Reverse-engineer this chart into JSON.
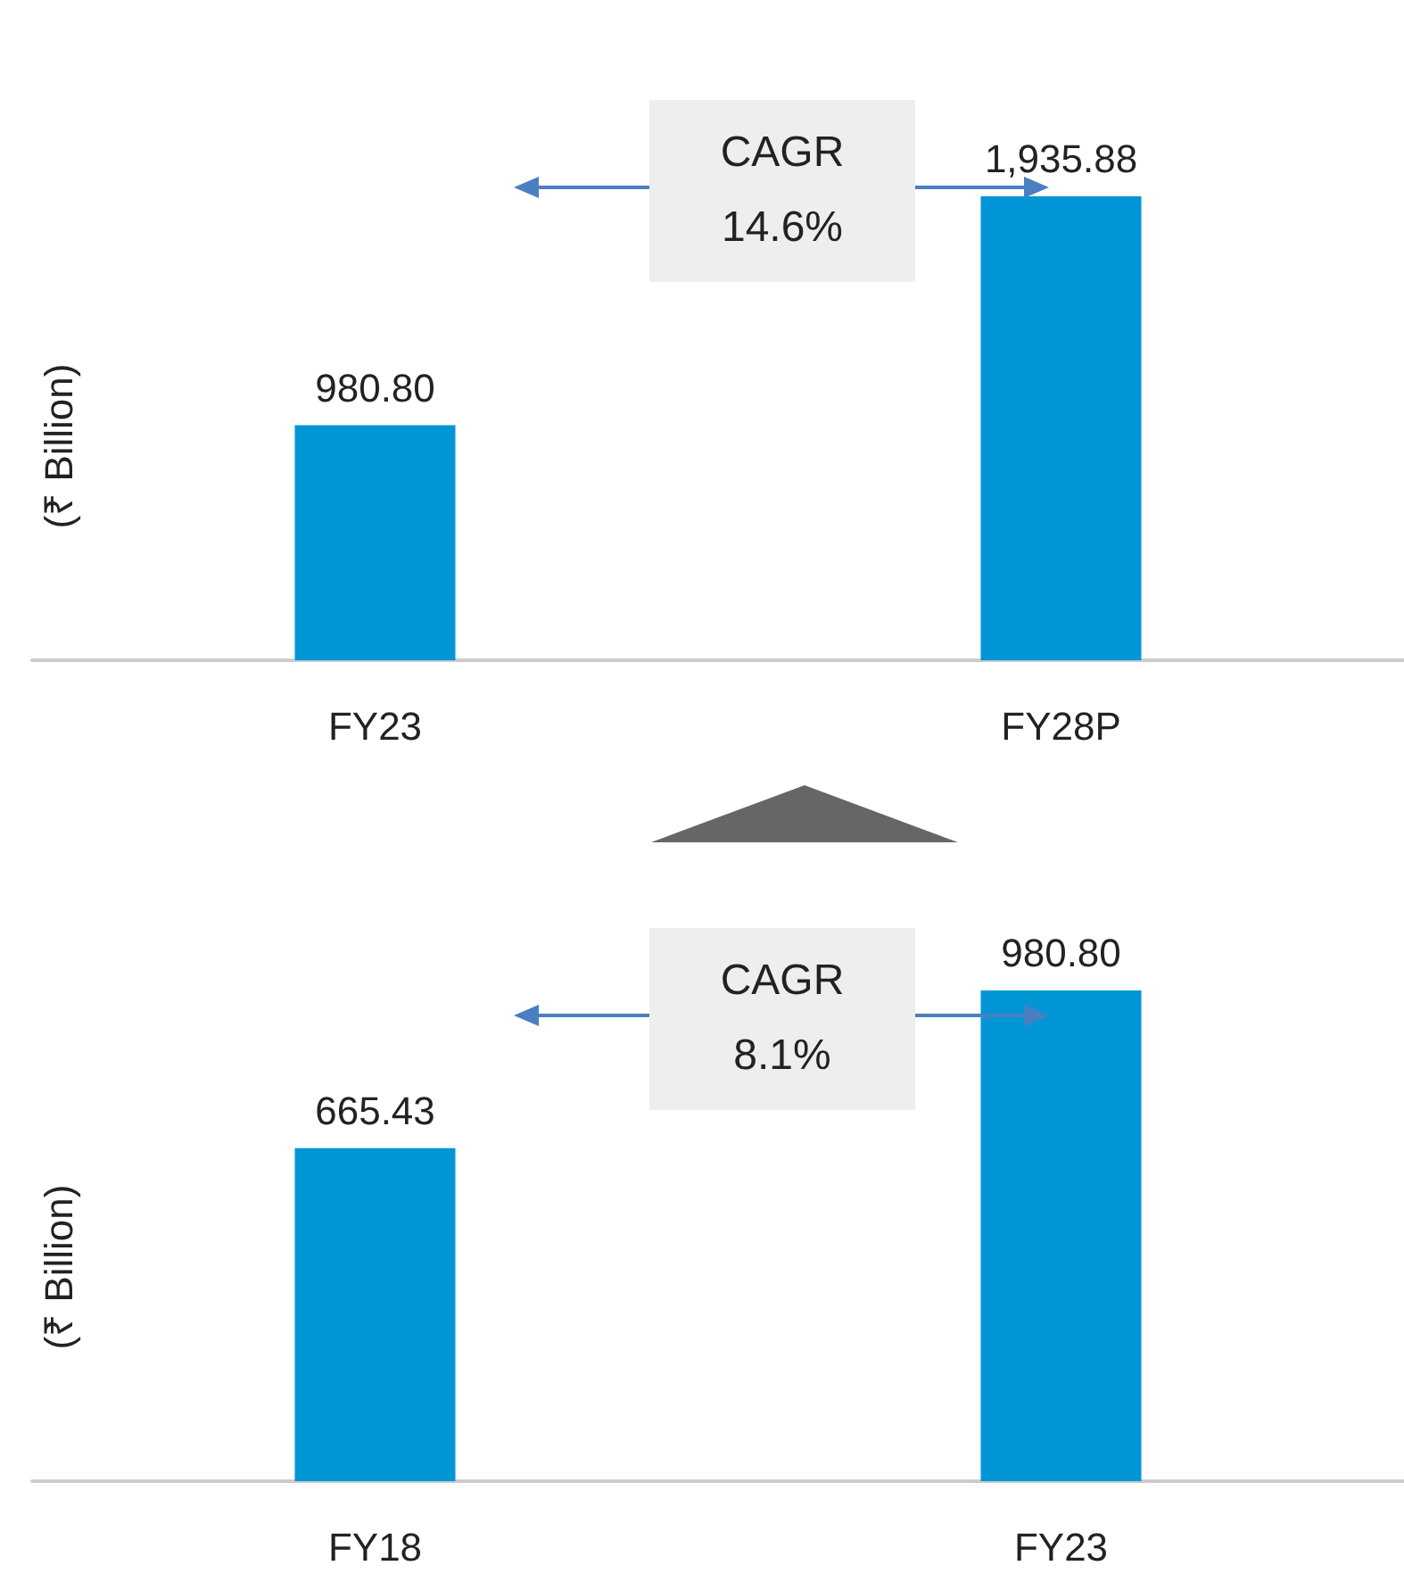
{
  "chart_data": [
    {
      "type": "bar",
      "ylabel": "(₹ Billion)",
      "categories": [
        "FY23",
        "FY28P"
      ],
      "values": [
        980.8,
        1935.88
      ],
      "value_labels": [
        "980.80",
        "1,935.88"
      ],
      "color": "#0096d6",
      "annotations": [
        "CAGR\n14.6%"
      ]
    },
    {
      "type": "bar",
      "ylabel": "(₹ Billion)",
      "categories": [
        "FY18",
        "FY23"
      ],
      "values": [
        665.43,
        980.8
      ],
      "value_labels": [
        "665.43",
        "980.80"
      ],
      "color": "#0096d6",
      "annotations": [
        "CAGR\n8.1%"
      ]
    }
  ]
}
